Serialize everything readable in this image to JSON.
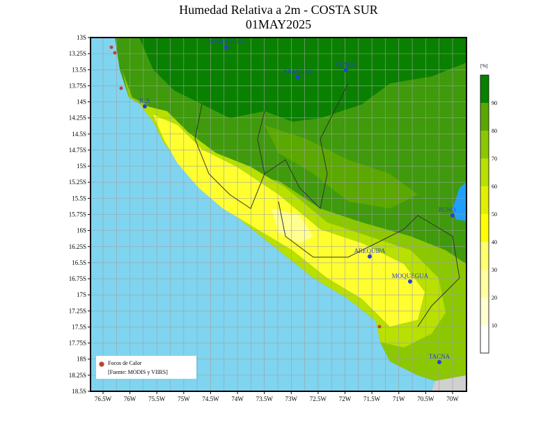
{
  "header": {
    "title": "Humedad Relativa a 2m - COSTA SUR",
    "subtitle": "01MAY2025"
  },
  "lat_labels": [
    "13S",
    "13.25S",
    "13.5S",
    "13.75S",
    "14S",
    "14.25S",
    "14.5S",
    "14.75S",
    "15S",
    "15.25S",
    "15.5S",
    "15.75S",
    "16S",
    "16.25S",
    "16.5S",
    "16.75S",
    "17S",
    "17.25S",
    "17.5S",
    "17.75S",
    "18S",
    "18.25S",
    "18.5S"
  ],
  "lon_labels": [
    "76.5W",
    "76W",
    "75.5W",
    "75W",
    "74.5W",
    "74W",
    "73.5W",
    "73W",
    "72.5W",
    "72W",
    "71.5W",
    "71W",
    "70.5W",
    "70W"
  ],
  "cities": [
    "AYACUCHO",
    "ABANCAY",
    "CUSCO",
    "ICA",
    "AREQUIPA",
    "MOQUEGUA",
    "PUNO",
    "TACNA"
  ],
  "colorbar": {
    "unit": "[%]",
    "labels": [
      90,
      80,
      70,
      60,
      50,
      40,
      30,
      20,
      10
    ]
  },
  "legend": {
    "label": "Focos de Calor",
    "source": "[Fuente: MODIS y VIIRS]"
  }
}
